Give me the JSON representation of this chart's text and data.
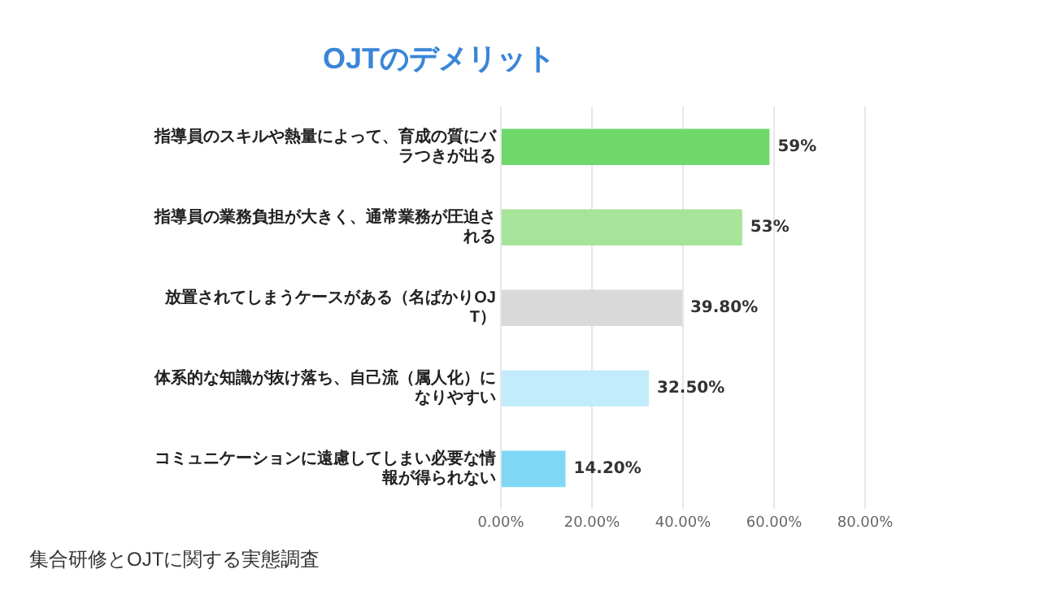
{
  "chart_data": {
    "type": "bar",
    "orientation": "horizontal",
    "title": "OJTのデメリット",
    "categories": [
      "指導員のスキルや熱量によって、育成の質にバラつきが出る",
      "指導員の業務負担が大きく、通常業務が圧迫される",
      "放置されてしまうケースがある（名ばかりOJT）",
      "体系的な知識が抜け落ち、自己流（属人化）になりやすい",
      "コミュニケーションに遠慮してしまい必要な情報が得られない"
    ],
    "values": [
      59,
      53,
      39.8,
      32.5,
      14.2
    ],
    "value_labels": [
      "59%",
      "53%",
      "39.80%",
      "32.50%",
      "14.20%"
    ],
    "colors": [
      "#6fd86b",
      "#a6e49a",
      "#d9d9d9",
      "#c2ecfb",
      "#7ed8f5"
    ],
    "xlim": [
      0,
      80
    ],
    "xticks": [
      {
        "value": 0,
        "label": "0.00%"
      },
      {
        "value": 20,
        "label": "20.00%"
      },
      {
        "value": 40,
        "label": "40.00%"
      },
      {
        "value": 60,
        "label": "60.00%"
      },
      {
        "value": 80,
        "label": "80.00%"
      }
    ],
    "grid": "x",
    "legend": false,
    "annotations": [
      "集合研修とOJTに関する実態調査"
    ]
  }
}
